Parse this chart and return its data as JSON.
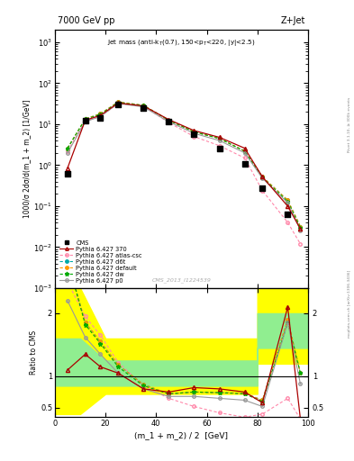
{
  "title_left": "7000 GeV pp",
  "title_right": "Z+Jet",
  "plot_title": "Jet mass (anti-k$_T$(0.7), 150<p$_T$<220, |y|<2.5)",
  "xlabel": "(m_1 + m_2) / 2  [GeV]",
  "ylabel_main": "1000/σ 2dσ/d(m_1 + m_2) [1/GeV]",
  "ylabel_ratio": "Ratio to CMS",
  "watermark": "CMS_2013_I1224539",
  "rivet_label": "Rivet 3.1.10, ≥ 300k events",
  "mcplots_label": "mcplots.cern.ch [arXiv:1306.3436]",
  "xlim": [
    0,
    100
  ],
  "ylim_main": [
    0.001,
    2000
  ],
  "ylim_ratio": [
    0.35,
    2.4
  ],
  "x_cms": [
    5,
    12,
    18,
    25,
    35,
    45,
    55,
    65,
    75,
    82,
    92
  ],
  "y_cms": [
    0.62,
    12.0,
    14.5,
    30.0,
    25.0,
    11.5,
    5.8,
    2.5,
    1.1,
    0.28,
    0.065
  ],
  "x_370": [
    5,
    12,
    18,
    25,
    35,
    45,
    55,
    65,
    75,
    82,
    92,
    97
  ],
  "y_370": [
    0.85,
    12.5,
    16.5,
    33.0,
    28.0,
    13.0,
    7.0,
    4.8,
    2.6,
    0.52,
    0.1,
    0.028
  ],
  "x_atl": [
    5,
    12,
    18,
    25,
    35,
    45,
    55,
    65,
    75,
    82,
    92,
    97
  ],
  "y_atl": [
    2.2,
    12.0,
    15.5,
    32.0,
    27.5,
    11.0,
    5.0,
    3.0,
    1.5,
    0.24,
    0.04,
    0.012
  ],
  "x_d6t": [
    5,
    12,
    18,
    25,
    35,
    45,
    55,
    65,
    75,
    82,
    92,
    97
  ],
  "y_d6t": [
    2.6,
    13.5,
    18.0,
    35.0,
    29.0,
    12.5,
    6.5,
    4.5,
    2.2,
    0.52,
    0.14,
    0.032
  ],
  "x_def": [
    5,
    12,
    18,
    25,
    35,
    45,
    55,
    65,
    75,
    82,
    92,
    97
  ],
  "y_def": [
    2.6,
    13.5,
    18.0,
    35.0,
    29.0,
    12.5,
    6.5,
    4.5,
    2.2,
    0.52,
    0.14,
    0.032
  ],
  "x_dw": [
    5,
    12,
    18,
    25,
    35,
    45,
    55,
    65,
    75,
    82,
    92,
    97
  ],
  "y_dw": [
    2.6,
    13.2,
    17.5,
    34.0,
    28.5,
    12.5,
    6.5,
    4.5,
    2.2,
    0.5,
    0.13,
    0.03
  ],
  "x_p0": [
    5,
    12,
    18,
    25,
    35,
    45,
    55,
    65,
    75,
    82,
    92,
    97
  ],
  "y_p0": [
    2.0,
    11.5,
    15.5,
    32.0,
    26.5,
    11.5,
    6.0,
    4.0,
    2.0,
    0.48,
    0.12,
    0.026
  ],
  "ratio_x": [
    5,
    12,
    18,
    25,
    35,
    45,
    55,
    65,
    75,
    82,
    92,
    97
  ],
  "ratio_370": [
    1.1,
    1.35,
    1.15,
    1.05,
    0.8,
    0.75,
    0.82,
    0.8,
    0.75,
    0.58,
    2.1,
    0.32
  ],
  "ratio_atl": [
    2.5,
    1.95,
    1.65,
    1.22,
    0.85,
    0.65,
    0.52,
    0.42,
    0.35,
    0.4,
    0.65,
    0.32
  ],
  "ratio_d6t": [
    2.85,
    1.85,
    1.55,
    1.18,
    0.87,
    0.72,
    0.75,
    0.74,
    0.73,
    0.62,
    1.9,
    1.05
  ],
  "ratio_def": [
    2.85,
    1.85,
    1.55,
    1.18,
    0.87,
    0.72,
    0.75,
    0.74,
    0.73,
    0.62,
    1.9,
    1.05
  ],
  "ratio_dw": [
    2.85,
    1.82,
    1.52,
    1.15,
    0.85,
    0.72,
    0.75,
    0.74,
    0.72,
    0.6,
    1.85,
    1.05
  ],
  "ratio_p0": [
    2.2,
    1.62,
    1.35,
    1.05,
    0.8,
    0.68,
    0.68,
    0.65,
    0.62,
    0.52,
    1.85,
    0.88
  ],
  "band_x": [
    0,
    10,
    10,
    20,
    20,
    30,
    30,
    40,
    40,
    50,
    50,
    60,
    60,
    70,
    70,
    80,
    80,
    90,
    90,
    100
  ],
  "band_green_lo": [
    0.85,
    0.85,
    0.85,
    0.85,
    0.85,
    0.85,
    0.85,
    0.85,
    0.85,
    0.85,
    0.85,
    0.85,
    0.85,
    0.85,
    0.85,
    0.85,
    1.45,
    1.45,
    1.45,
    1.45
  ],
  "band_green_hi": [
    1.6,
    1.6,
    1.6,
    1.25,
    1.25,
    1.25,
    1.25,
    1.25,
    1.25,
    1.25,
    1.25,
    1.25,
    1.25,
    1.25,
    1.25,
    1.25,
    2.0,
    2.0,
    2.0,
    2.0
  ],
  "band_yellow_lo": [
    0.4,
    0.4,
    0.4,
    0.72,
    0.72,
    0.72,
    0.72,
    0.72,
    0.72,
    0.72,
    0.72,
    0.72,
    0.72,
    0.72,
    0.72,
    0.72,
    1.2,
    1.2,
    1.2,
    1.2
  ],
  "band_yellow_hi": [
    2.4,
    2.4,
    2.4,
    1.6,
    1.6,
    1.6,
    1.6,
    1.6,
    1.6,
    1.6,
    1.6,
    1.6,
    1.6,
    1.6,
    1.6,
    1.6,
    2.4,
    2.4,
    2.4,
    2.4
  ],
  "color_cms": "#000000",
  "color_370": "#aa0000",
  "color_atl": "#ff88aa",
  "color_d6t": "#00aaaa",
  "color_def": "#ff9900",
  "color_dw": "#00aa00",
  "color_p0": "#999999"
}
